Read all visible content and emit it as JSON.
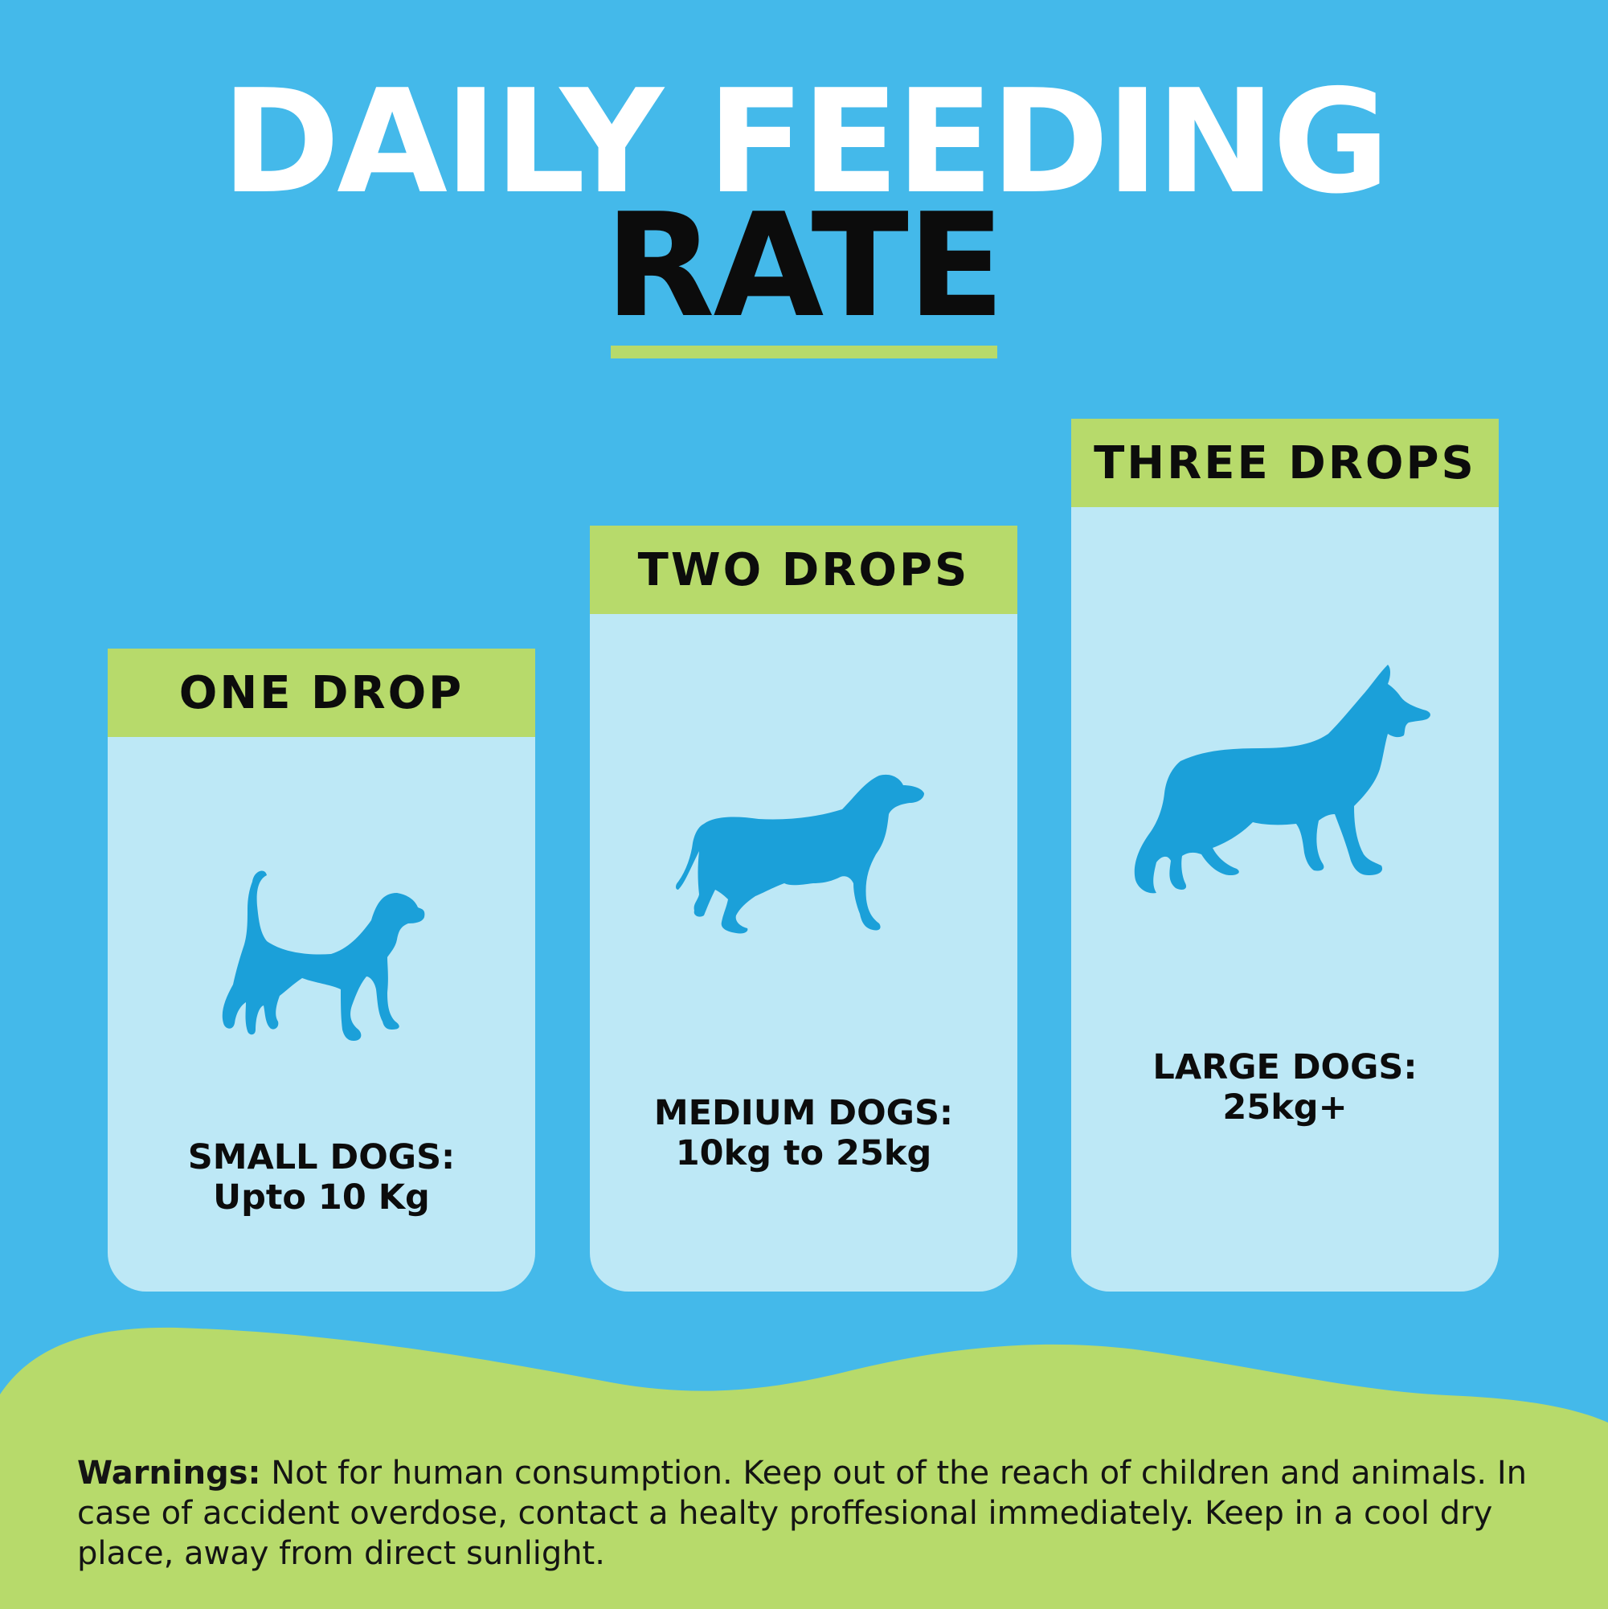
{
  "title": {
    "line1": "DAILY FEEDING",
    "line2": "RATE"
  },
  "colors": {
    "background": "#44b9ea",
    "accent_green": "#b7da6b",
    "card_fill": "#bde8f6",
    "dog_silhouette": "#1ba0d9",
    "title_white": "#ffffff",
    "text_dark": "#0c0c0c"
  },
  "cards": [
    {
      "header": "ONE DROP",
      "label_line1": "SMALL DOGS:",
      "label_line2": "Upto 10 Kg",
      "icon": "small-dog-icon"
    },
    {
      "header": "TWO DROPS",
      "label_line1": "MEDIUM DOGS:",
      "label_line2": "10kg to 25kg",
      "icon": "medium-dog-icon"
    },
    {
      "header": "THREE DROPS",
      "label_line1": "LARGE DOGS:",
      "label_line2": "25kg+",
      "icon": "large-dog-icon"
    }
  ],
  "warning": {
    "label": "Warnings:",
    "text": "Not for human consumption. Keep out of the reach of children and animals. In case of accident overdose, contact a healty proffesional immediately. Keep in a cool dry place, away from direct sunlight."
  }
}
